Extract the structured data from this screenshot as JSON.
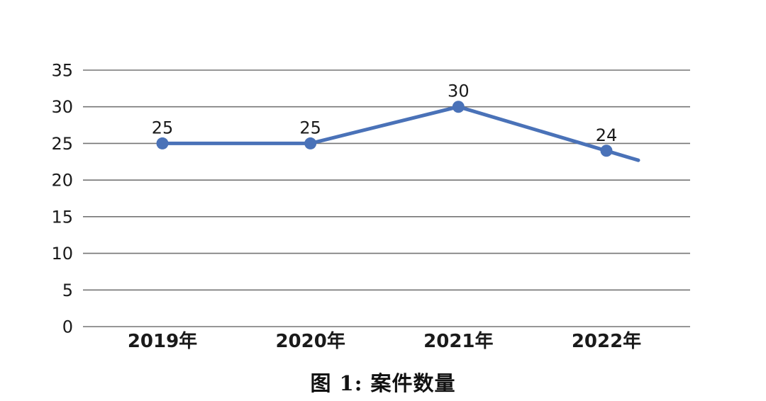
{
  "page": {
    "background": "#ffffff"
  },
  "chart_data": {
    "type": "line",
    "title": "",
    "caption": "图 1: 案件数量",
    "categories": [
      "2019年",
      "2020年",
      "2021年",
      "2022年"
    ],
    "series": [
      {
        "name": "案件数量",
        "values": [
          25,
          25,
          30,
          24
        ]
      }
    ],
    "data_labels": [
      "25",
      "25",
      "30",
      "24"
    ],
    "yticks": [
      0,
      5,
      10,
      15,
      20,
      25,
      30,
      35
    ],
    "ylim": [
      0,
      35
    ],
    "xlabel": "",
    "ylabel": "",
    "grid": "horizontal",
    "legend": "none",
    "partial_next_segment_end_value": 22.7,
    "colors": {
      "line": "#4a72b8",
      "marker": "#4a72b8",
      "grid": "#757575",
      "text": "#1a1a1a"
    }
  }
}
